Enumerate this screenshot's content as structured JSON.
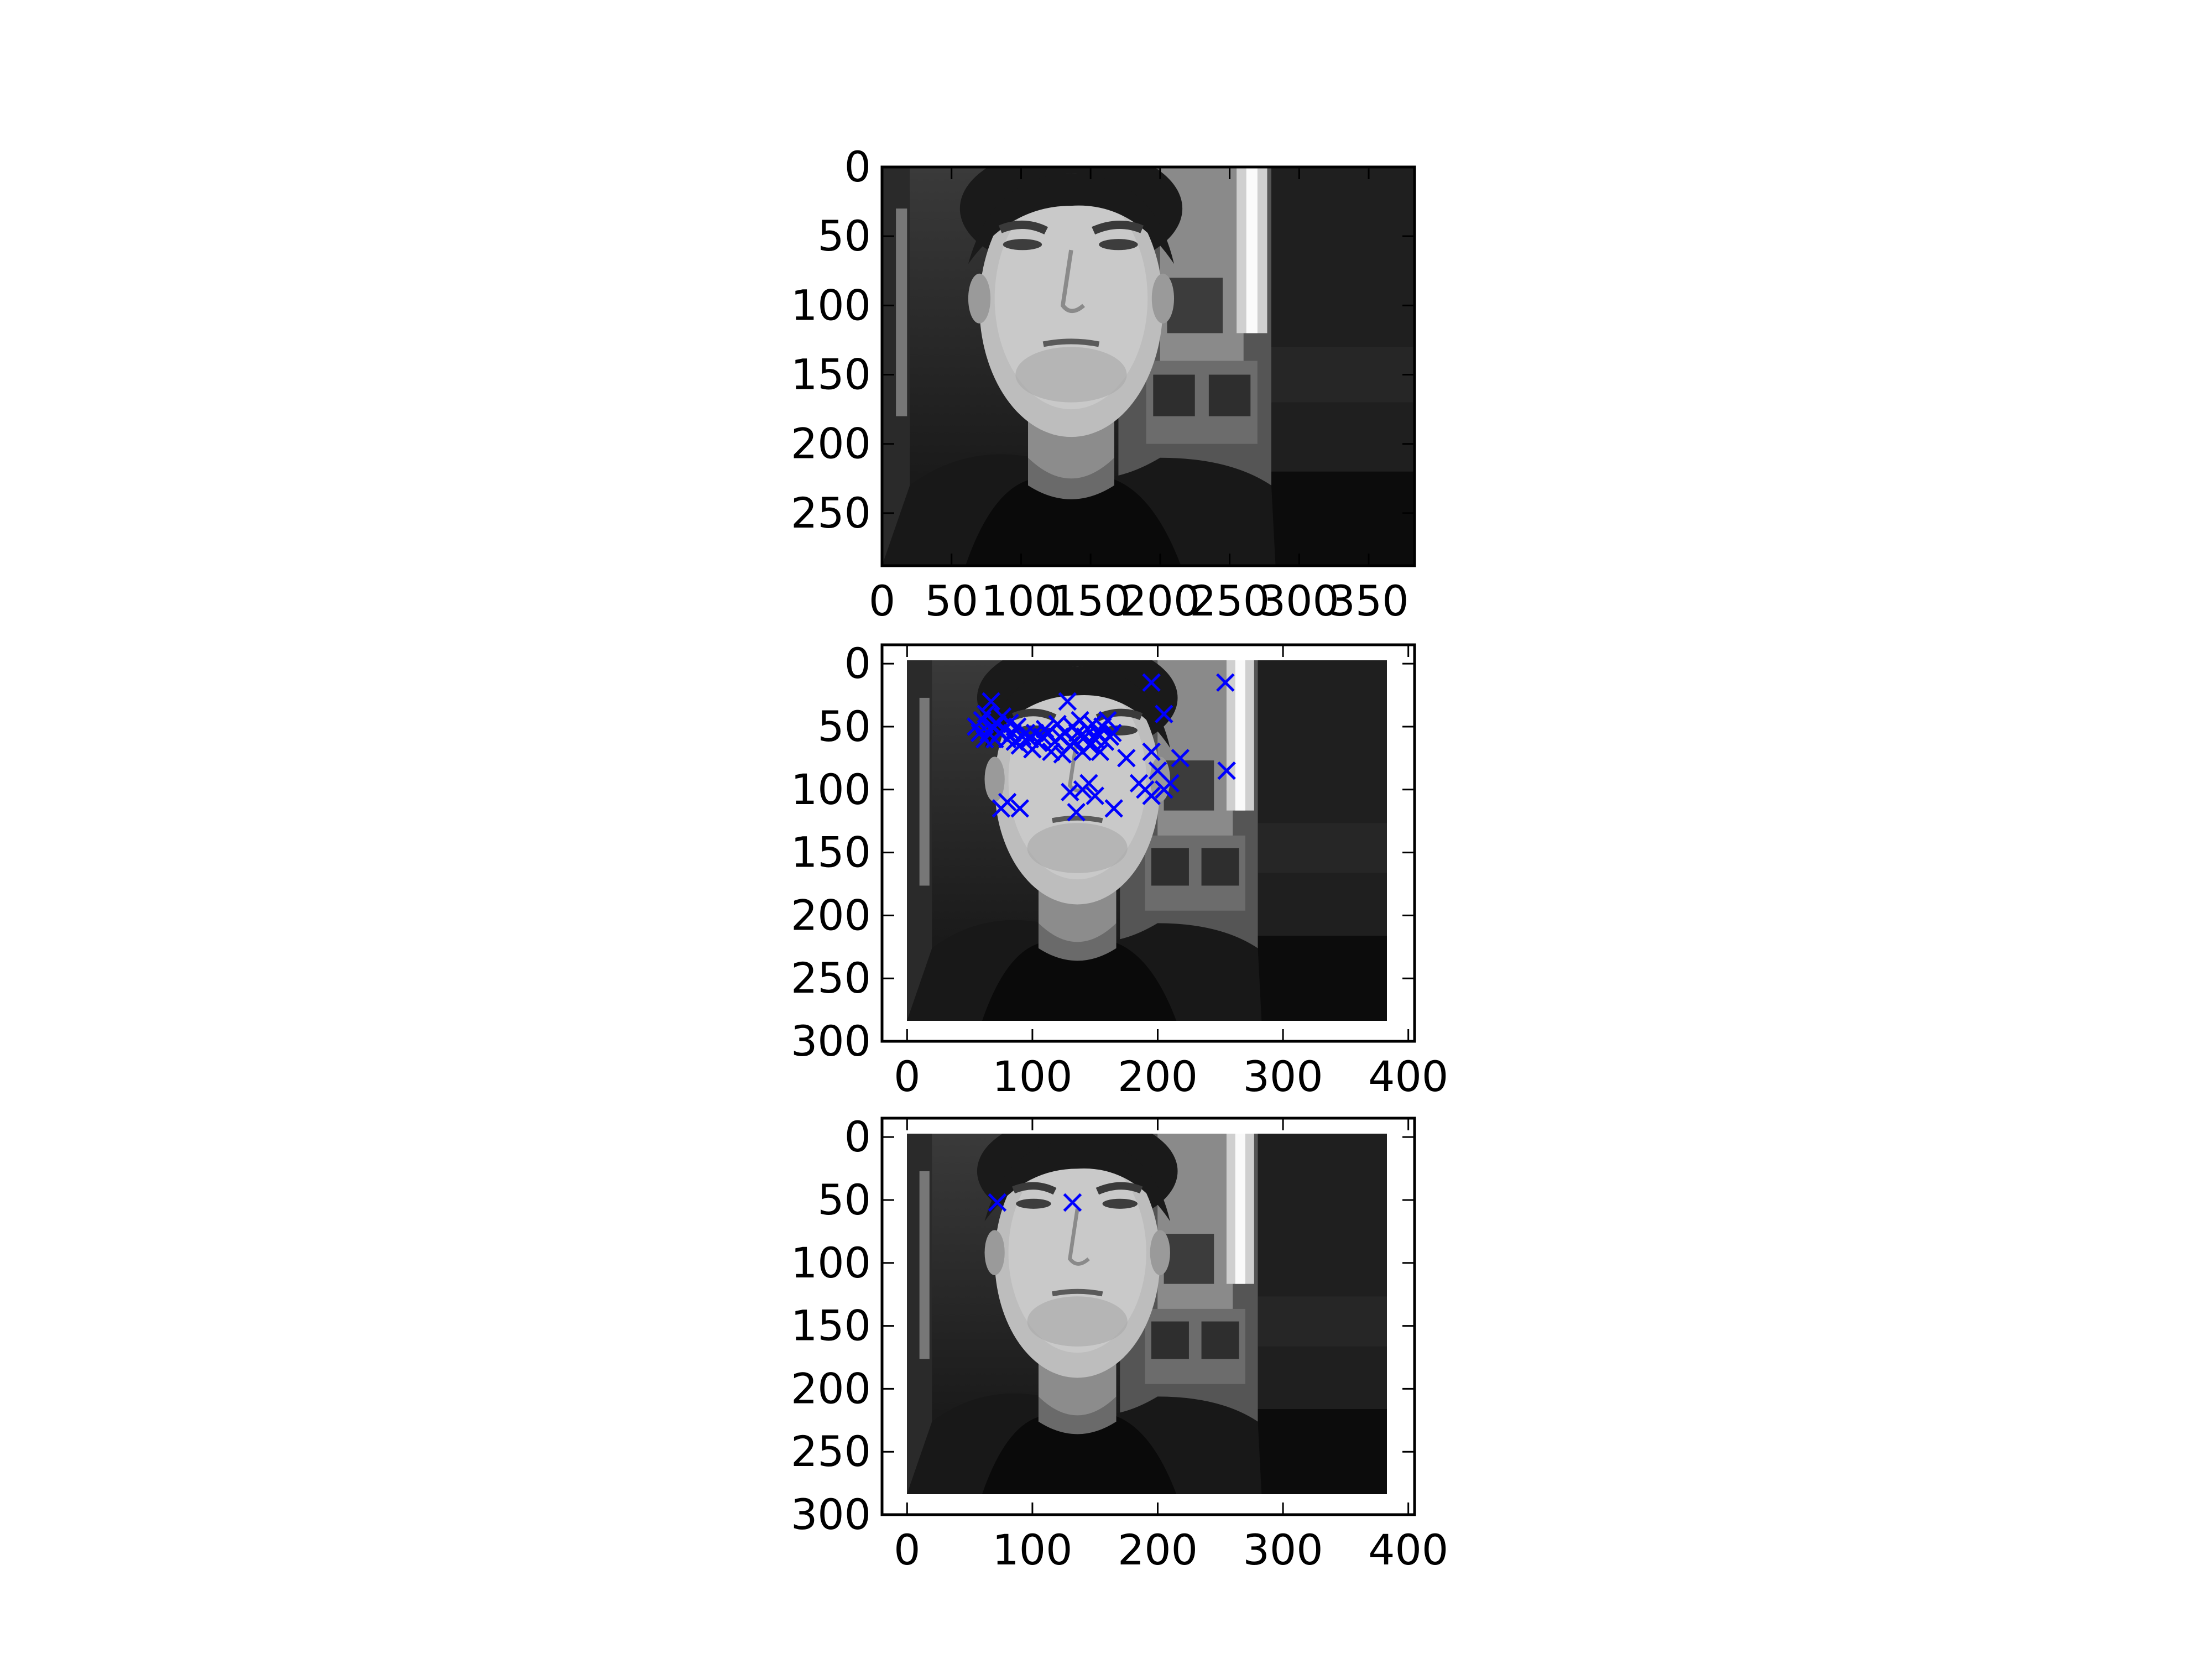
{
  "chart_data": [
    {
      "type": "scatter",
      "image": "grayscale face photograph",
      "xlim": [
        0,
        383
      ],
      "ylim": [
        288,
        0
      ],
      "x_ticks": [
        "0",
        "50",
        "100",
        "150",
        "200",
        "250",
        "300",
        "350"
      ],
      "y_ticks": [
        "0",
        "50",
        "100",
        "150",
        "200",
        "250"
      ],
      "grid": false,
      "series": []
    },
    {
      "type": "scatter",
      "image": "grayscale face photograph",
      "xlim": [
        -20,
        405
      ],
      "ylim": [
        300,
        -15
      ],
      "x_ticks": [
        "0",
        "100",
        "200",
        "300",
        "400"
      ],
      "y_ticks": [
        "0",
        "50",
        "100",
        "150",
        "200",
        "250",
        "300"
      ],
      "grid": false,
      "marker": "x",
      "marker_color": "#0000ff",
      "series": [
        {
          "x": [
            55,
            58,
            60,
            62,
            63,
            65,
            67,
            68,
            70,
            72,
            74,
            76,
            78,
            80,
            82,
            84,
            86,
            88,
            90,
            92,
            95,
            98,
            100,
            102,
            105,
            108,
            110,
            112,
            115,
            118,
            120,
            122,
            124,
            126,
            128,
            130,
            132,
            134,
            136,
            138,
            140,
            142,
            144,
            146,
            148,
            150,
            152,
            154,
            156,
            158,
            160,
            162,
            164,
            75,
            80,
            90,
            130,
            135,
            140,
            145,
            150,
            165,
            175,
            185,
            190,
            195,
            200,
            205,
            210,
            218,
            195,
            205,
            195,
            255,
            254
          ],
          "y": [
            50,
            55,
            45,
            60,
            40,
            55,
            30,
            50,
            60,
            48,
            55,
            42,
            52,
            60,
            47,
            55,
            62,
            50,
            65,
            58,
            55,
            60,
            68,
            55,
            63,
            58,
            52,
            55,
            70,
            62,
            48,
            58,
            72,
            55,
            30,
            65,
            50,
            62,
            55,
            45,
            70,
            58,
            52,
            65,
            48,
            60,
            55,
            70,
            50,
            62,
            45,
            58,
            55,
            115,
            110,
            115,
            102,
            118,
            100,
            95,
            105,
            115,
            75,
            95,
            100,
            70,
            85,
            40,
            95,
            75,
            15,
            100,
            105,
            85,
            15
          ]
        }
      ]
    },
    {
      "type": "scatter",
      "image": "grayscale face photograph",
      "xlim": [
        -20,
        405
      ],
      "ylim": [
        300,
        -15
      ],
      "x_ticks": [
        "0",
        "100",
        "200",
        "300",
        "400"
      ],
      "y_ticks": [
        "0",
        "50",
        "100",
        "150",
        "200",
        "250",
        "300"
      ],
      "grid": false,
      "marker": "x",
      "marker_color": "#0000ff",
      "series": [
        {
          "x": [
            72,
            132
          ],
          "y": [
            52,
            52
          ]
        }
      ]
    }
  ]
}
